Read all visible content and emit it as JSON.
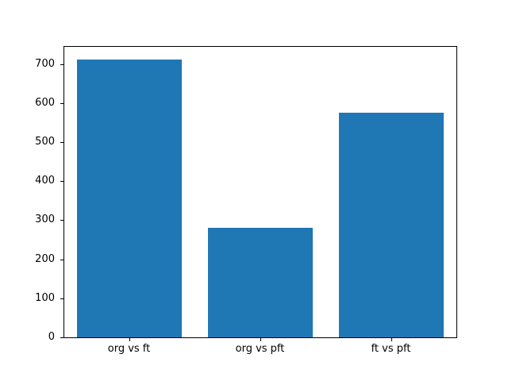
{
  "figure": {
    "background": "#ffffff",
    "text_color": "#000000"
  },
  "chart_data": {
    "type": "bar",
    "categories": [
      "org vs ft",
      "org vs pft",
      "ft vs pft"
    ],
    "values": [
      712,
      280,
      575
    ],
    "title": "",
    "xlabel": "",
    "ylabel": "",
    "ylim": [
      0,
      746
    ],
    "yticks": [
      0,
      100,
      200,
      300,
      400,
      500,
      600,
      700
    ],
    "bar_color": "#1f77b4",
    "bar_width_fraction": 0.8,
    "grid": false,
    "legend": null
  }
}
